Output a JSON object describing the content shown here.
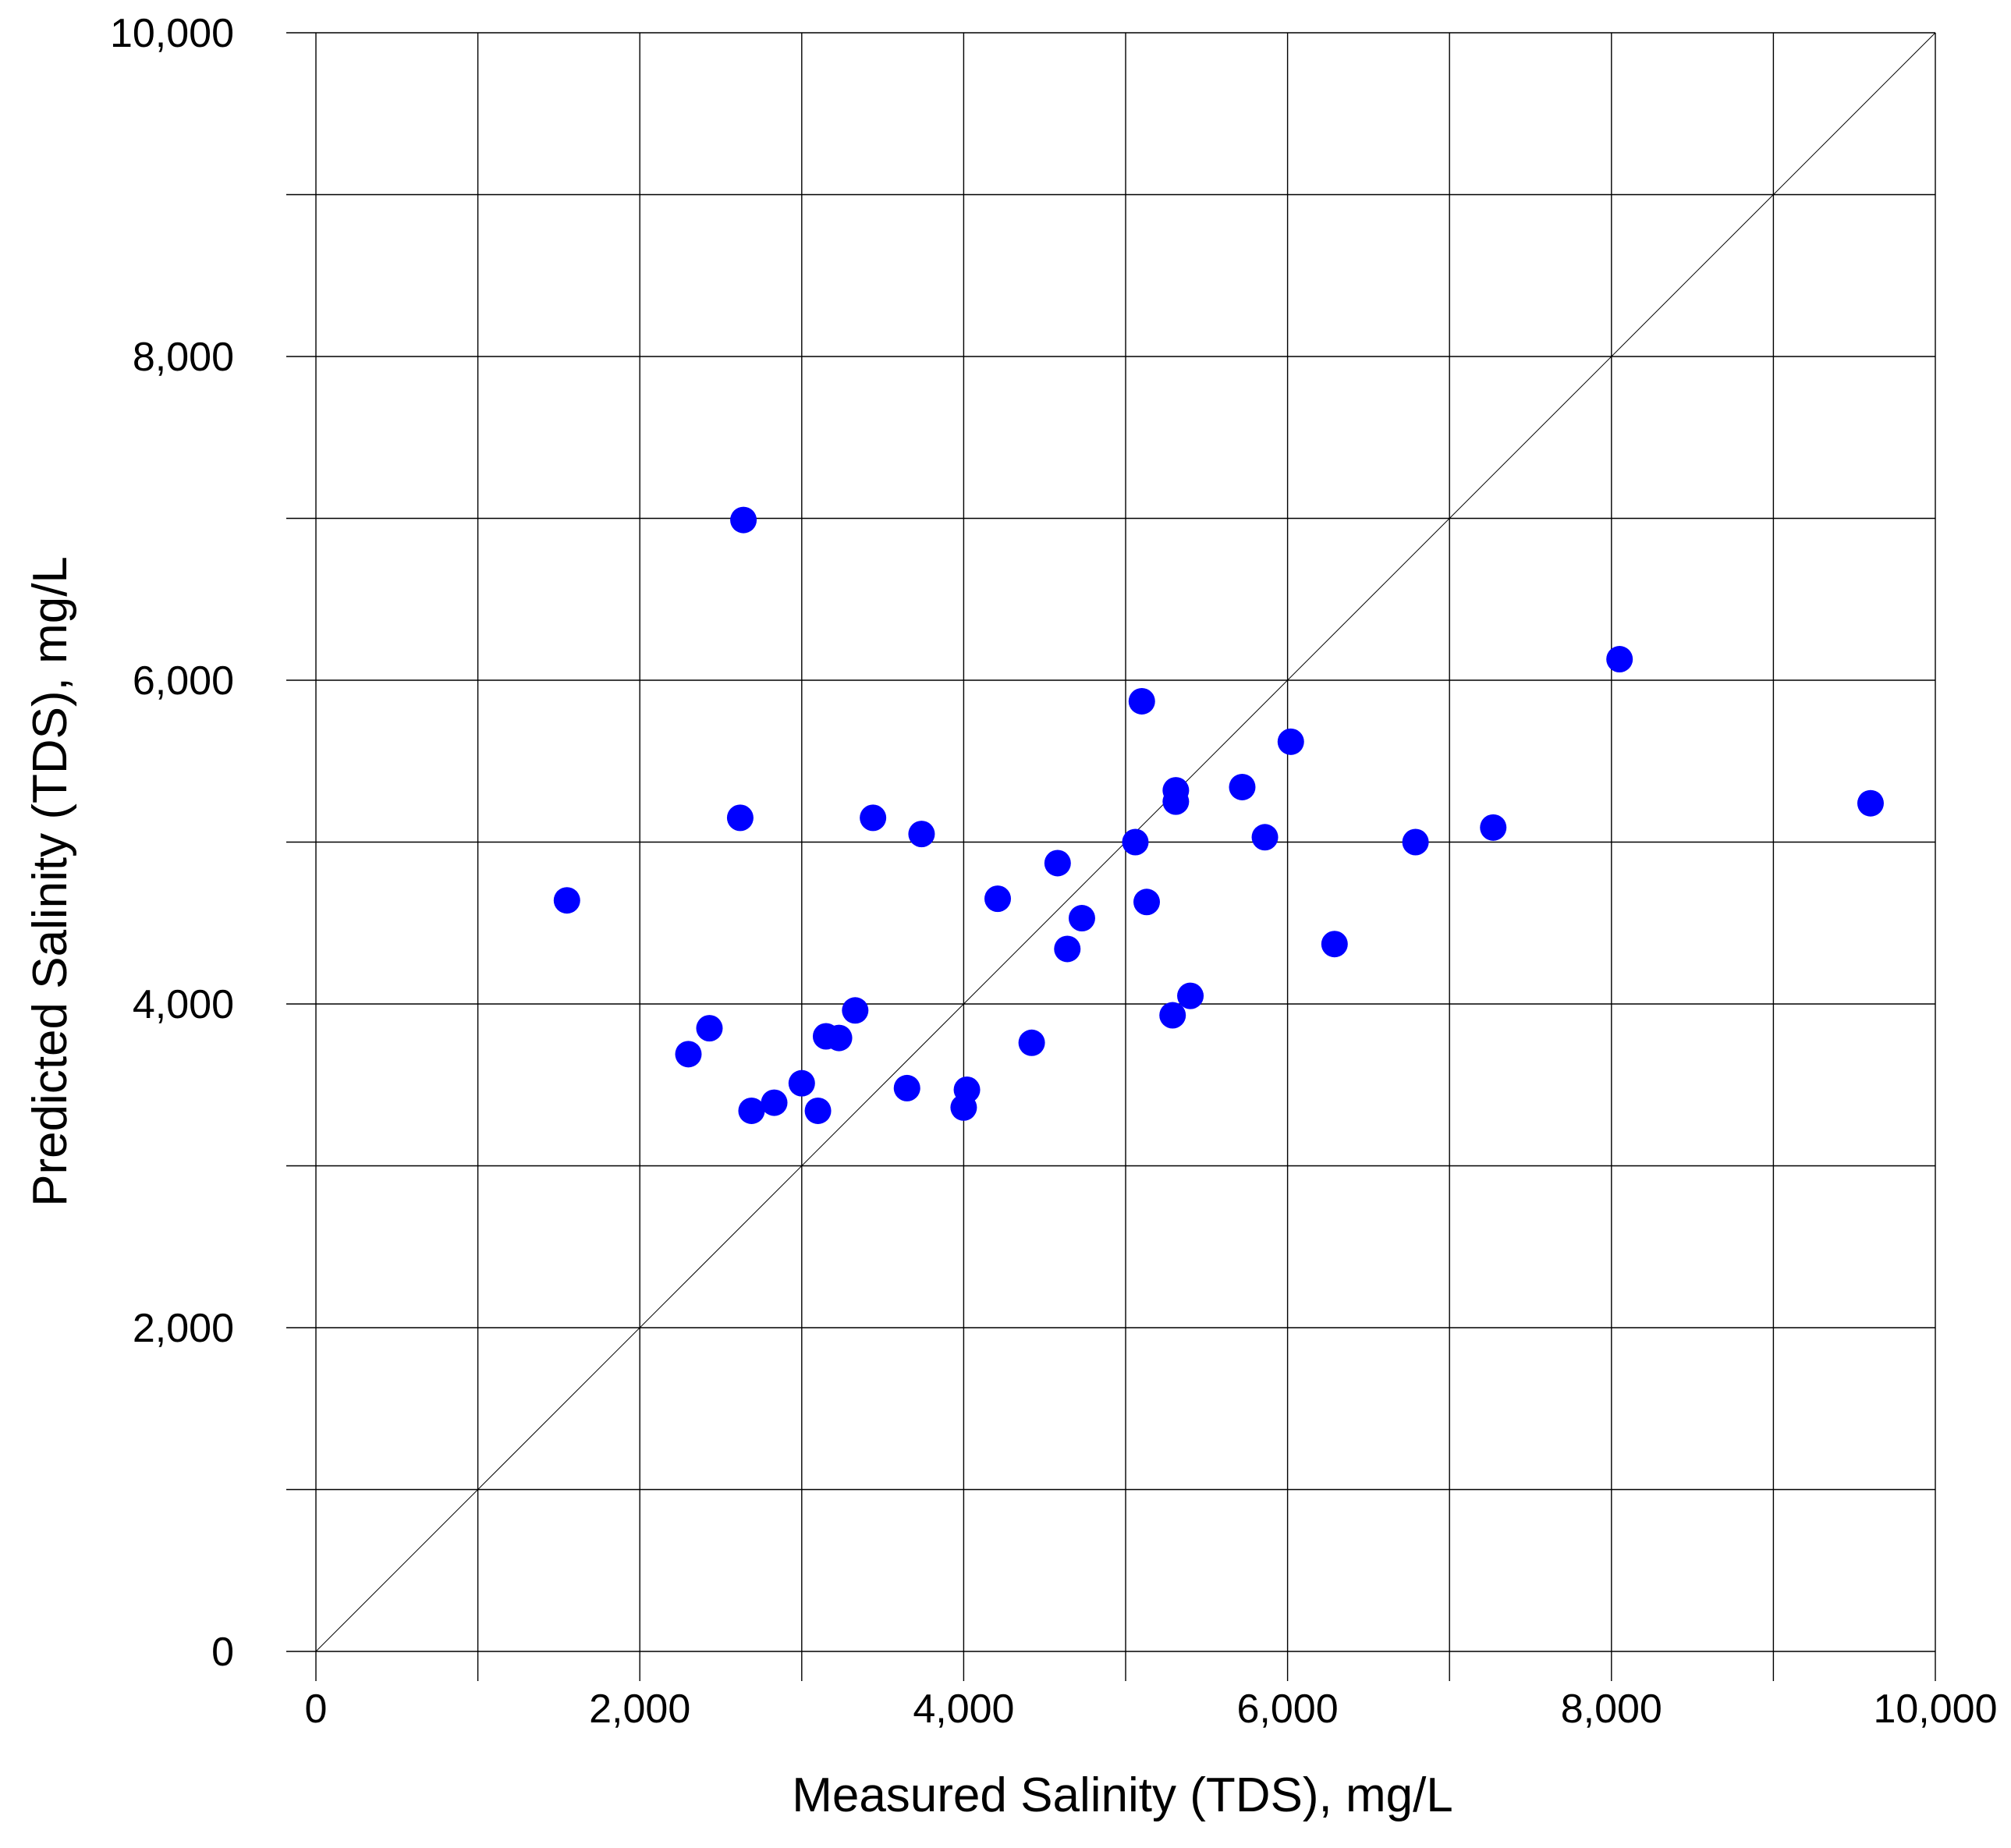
{
  "chart_data": {
    "type": "scatter",
    "title": "",
    "xlabel": "Measured Salinity (TDS), mg/L",
    "ylabel": "Predicted Salinity (TDS), mg/L",
    "xlim": [
      0,
      10000
    ],
    "ylim": [
      0,
      10000
    ],
    "x_ticks": [
      "0",
      "2,000",
      "4,000",
      "6,000",
      "8,000",
      "10,000"
    ],
    "y_ticks": [
      "0",
      "2,000",
      "4,000",
      "6,000",
      "8,000",
      "10,000"
    ],
    "grid": true,
    "grid_step": 1000,
    "reference_line": "y = x",
    "marker_color": "#0000ff",
    "series": [
      {
        "points": [
          [
            1550,
            4640
          ],
          [
            2300,
            3690
          ],
          [
            2430,
            3850
          ],
          [
            2620,
            5150
          ],
          [
            2640,
            6990
          ],
          [
            2690,
            3340
          ],
          [
            2830,
            3390
          ],
          [
            3000,
            3510
          ],
          [
            3100,
            3340
          ],
          [
            3150,
            3800
          ],
          [
            3230,
            3790
          ],
          [
            3330,
            3960
          ],
          [
            3440,
            5150
          ],
          [
            3650,
            3480
          ],
          [
            3740,
            5050
          ],
          [
            4000,
            3360
          ],
          [
            4020,
            3470
          ],
          [
            4210,
            4650
          ],
          [
            4420,
            3760
          ],
          [
            4580,
            4870
          ],
          [
            4640,
            4340
          ],
          [
            4730,
            4530
          ],
          [
            5060,
            5000
          ],
          [
            5100,
            5870
          ],
          [
            5130,
            4630
          ],
          [
            5290,
            3930
          ],
          [
            5310,
            5320
          ],
          [
            5310,
            5250
          ],
          [
            5400,
            4050
          ],
          [
            5720,
            5340
          ],
          [
            5860,
            5030
          ],
          [
            6020,
            5620
          ],
          [
            6290,
            4370
          ],
          [
            6790,
            5000
          ],
          [
            7270,
            5090
          ],
          [
            8050,
            6130
          ],
          [
            9600,
            5240
          ]
        ]
      }
    ]
  }
}
